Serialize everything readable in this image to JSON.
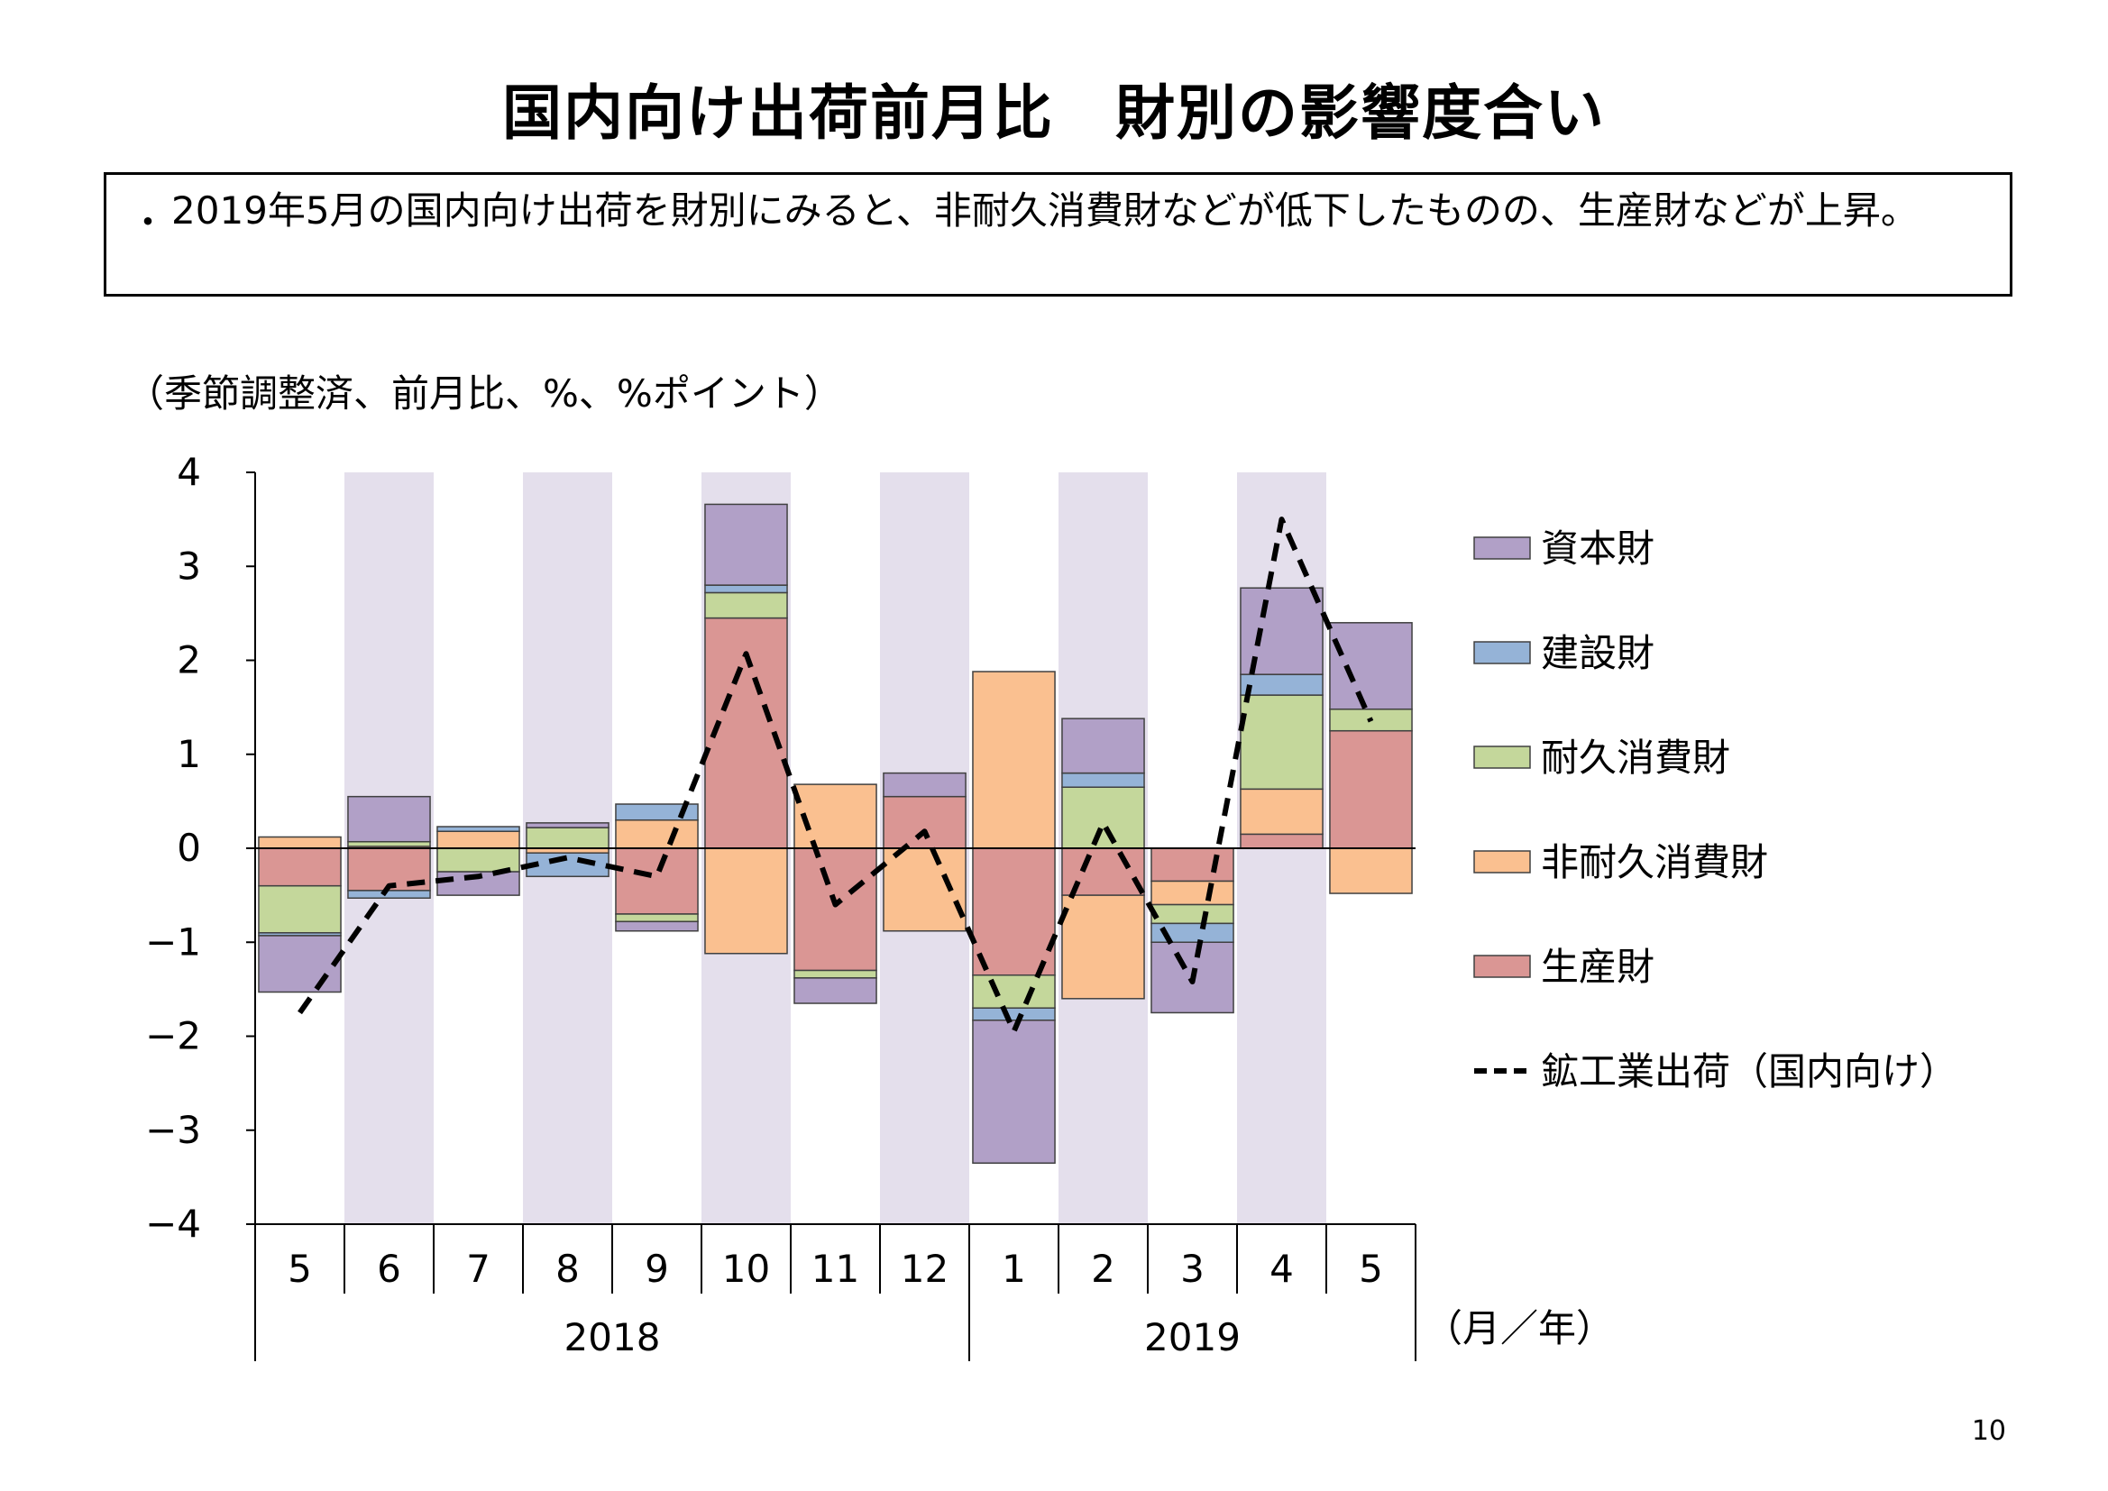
{
  "title": "国内向け出荷前月比　財別の影響度合い",
  "summary": {
    "bullet": "・",
    "text": "2019年5月の国内向け出荷を財別にみると、非耐久消費財などが低下したものの、生産財などが上昇。"
  },
  "units_note": "（季節調整済、前月比、%、%ポイント）",
  "page_number": "10",
  "chart_data": {
    "type": "bar",
    "stacked": true,
    "categories": [
      "5",
      "6",
      "7",
      "8",
      "9",
      "10",
      "11",
      "12",
      "1",
      "2",
      "3",
      "4",
      "5"
    ],
    "year_groups": [
      {
        "label": "2018",
        "from": 0,
        "to": 7
      },
      {
        "label": "2019",
        "from": 8,
        "to": 12
      }
    ],
    "x_unit_label": "（月／年）",
    "ylim": [
      -4,
      4
    ],
    "yticks": [
      4,
      3,
      2,
      1,
      0,
      -1,
      -2,
      -3,
      -4
    ],
    "ytick_labels": [
      "4",
      "3",
      "2",
      "1",
      "0",
      "−1",
      "−2",
      "−3",
      "−4"
    ],
    "shaded_categories": [
      1,
      3,
      5,
      7,
      9,
      11
    ],
    "shade_color": "#e4dfec",
    "legend_position": "right",
    "series": [
      {
        "name": "生産財",
        "color": "#da9694",
        "values": [
          -0.4,
          -0.45,
          0,
          0,
          -0.7,
          2.45,
          -1.3,
          0.55,
          -1.35,
          -0.5,
          -0.35,
          0.15,
          1.25
        ]
      },
      {
        "name": "非耐久消費財",
        "color": "#fac090",
        "values": [
          0.12,
          0.02,
          0.18,
          -0.05,
          0.3,
          -1.12,
          0.68,
          -0.88,
          1.88,
          -1.1,
          -0.25,
          0.48,
          -0.48
        ]
      },
      {
        "name": "耐久消費財",
        "color": "#c4d79b",
        "values": [
          -0.5,
          0.05,
          -0.25,
          0.22,
          -0.08,
          0.27,
          -0.08,
          0,
          -0.35,
          0.65,
          -0.2,
          1.0,
          0.23
        ]
      },
      {
        "name": "建設財",
        "color": "#95b3d7",
        "values": [
          -0.03,
          -0.08,
          0.05,
          -0.25,
          0.17,
          0.08,
          0,
          0,
          -0.13,
          0.15,
          -0.2,
          0.22,
          0
        ]
      },
      {
        "name": "資本財",
        "color": "#b1a0c7",
        "values": [
          -0.6,
          0.48,
          -0.25,
          0.05,
          -0.1,
          0.86,
          -0.27,
          0.25,
          -1.52,
          0.58,
          -0.75,
          0.92,
          0.92
        ]
      }
    ],
    "line_series": {
      "name": "鉱工業出荷（国内向け）",
      "color": "#000000",
      "values": [
        -1.75,
        -0.4,
        -0.3,
        -0.1,
        -0.3,
        2.07,
        -0.6,
        0.18,
        -1.95,
        0.27,
        -1.42,
        3.5,
        1.35
      ]
    },
    "legend_order": [
      "資本財",
      "建設財",
      "耐久消費財",
      "非耐久消費財",
      "生産財",
      "鉱工業出荷（国内向け）"
    ]
  }
}
